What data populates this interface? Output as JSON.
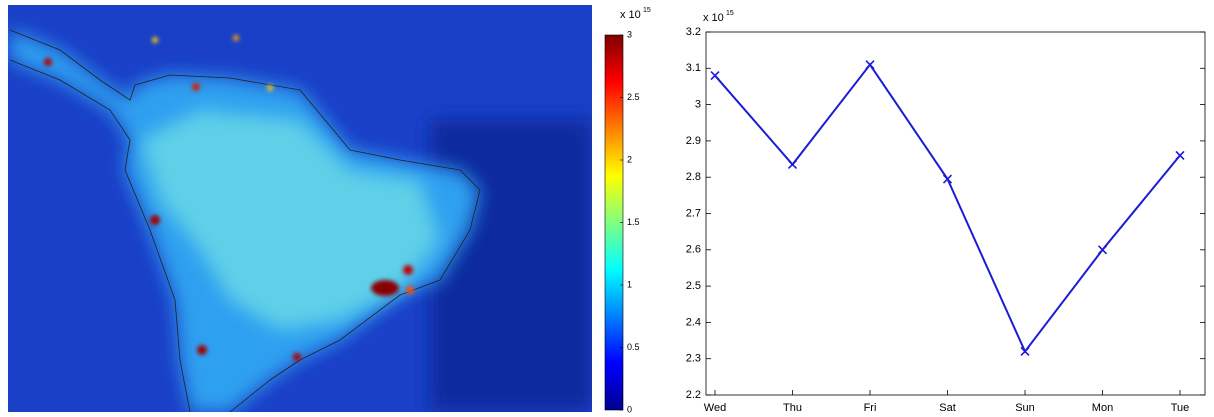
{
  "chart_data": [
    {
      "type": "heatmap",
      "colorbar": {
        "clim": [
          0,
          3
        ],
        "ticks": [
          0,
          0.5,
          1,
          1.5,
          2,
          2.5,
          3
        ],
        "colormap": [
          "#00008f",
          "#0000ff",
          "#0080ff",
          "#00ffff",
          "#80ff80",
          "#ffff00",
          "#ff8000",
          "#ff0000",
          "#800000"
        ],
        "multiplier": {
          "base": "x 10",
          "exponent": "15"
        }
      }
    },
    {
      "type": "line",
      "categories": [
        "Wed",
        "Thu",
        "Fri",
        "Sat",
        "Sun",
        "Mon",
        "Tue"
      ],
      "series": [
        {
          "color": "#1c1cd6",
          "marker": "x",
          "values": [
            3.08,
            2.835,
            3.11,
            2.795,
            2.32,
            2.6,
            2.86
          ]
        }
      ],
      "ylim": [
        2.2,
        3.2
      ],
      "yticks": [
        2.2,
        2.3,
        2.4,
        2.5,
        2.6,
        2.7,
        2.8,
        2.9,
        3,
        3.1,
        3.2
      ],
      "multiplier": {
        "base": "x 10",
        "exponent": "15"
      },
      "grid": false
    }
  ]
}
